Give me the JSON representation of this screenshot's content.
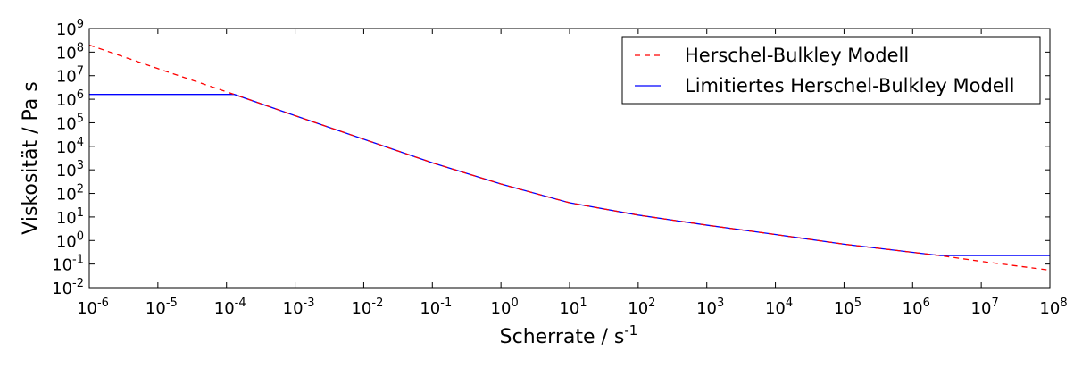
{
  "chart_data": {
    "type": "line",
    "xlabel": "Scherrate / s",
    "xlabel_sup": "-1",
    "ylabel": "Viskosität / Pa s",
    "xscale": "log",
    "yscale": "log",
    "xlim": [
      1e-06,
      100000000.0
    ],
    "ylim": [
      0.01,
      1000000000.0
    ],
    "x_tick_exponents": [
      -6,
      -5,
      -4,
      -3,
      -2,
      -1,
      0,
      1,
      2,
      3,
      4,
      5,
      6,
      7,
      8
    ],
    "y_tick_exponents": [
      -2,
      -1,
      0,
      1,
      2,
      3,
      4,
      5,
      6,
      7,
      8,
      9
    ],
    "tick_base": "10",
    "grid": false,
    "legend_position": "top-right",
    "series": [
      {
        "name": "Herschel-Bulkley Modell",
        "color": "#ff0000",
        "style": "dashed",
        "points": [
          {
            "x": 1e-06,
            "y": 200000000.0
          },
          {
            "x": 1e-05,
            "y": 20000000.0
          },
          {
            "x": 0.00013,
            "y": 1600000.0
          },
          {
            "x": 0.001,
            "y": 200000.0
          },
          {
            "x": 0.01,
            "y": 20000.0
          },
          {
            "x": 0.1,
            "y": 2000.0
          },
          {
            "x": 1.0,
            "y": 250.0
          },
          {
            "x": 10.0,
            "y": 40.0
          },
          {
            "x": 100.0,
            "y": 12.0
          },
          {
            "x": 1000.0,
            "y": 4.5
          },
          {
            "x": 10000.0,
            "y": 1.8
          },
          {
            "x": 100000.0,
            "y": 0.7
          },
          {
            "x": 2500000.0,
            "y": 0.23
          },
          {
            "x": 10000000.0,
            "y": 0.13
          },
          {
            "x": 100000000.0,
            "y": 0.055
          }
        ]
      },
      {
        "name": "Limitiertes Herschel-Bulkley Modell",
        "color": "#0000ff",
        "style": "solid",
        "points": [
          {
            "x": 1e-06,
            "y": 1600000.0
          },
          {
            "x": 0.00013,
            "y": 1600000.0
          },
          {
            "x": 0.001,
            "y": 200000.0
          },
          {
            "x": 0.01,
            "y": 20000.0
          },
          {
            "x": 0.1,
            "y": 2000.0
          },
          {
            "x": 1.0,
            "y": 250.0
          },
          {
            "x": 10.0,
            "y": 40.0
          },
          {
            "x": 100.0,
            "y": 12.0
          },
          {
            "x": 1000.0,
            "y": 4.5
          },
          {
            "x": 10000.0,
            "y": 1.8
          },
          {
            "x": 100000.0,
            "y": 0.7
          },
          {
            "x": 2500000.0,
            "y": 0.23
          },
          {
            "x": 100000000.0,
            "y": 0.23
          }
        ]
      }
    ]
  }
}
